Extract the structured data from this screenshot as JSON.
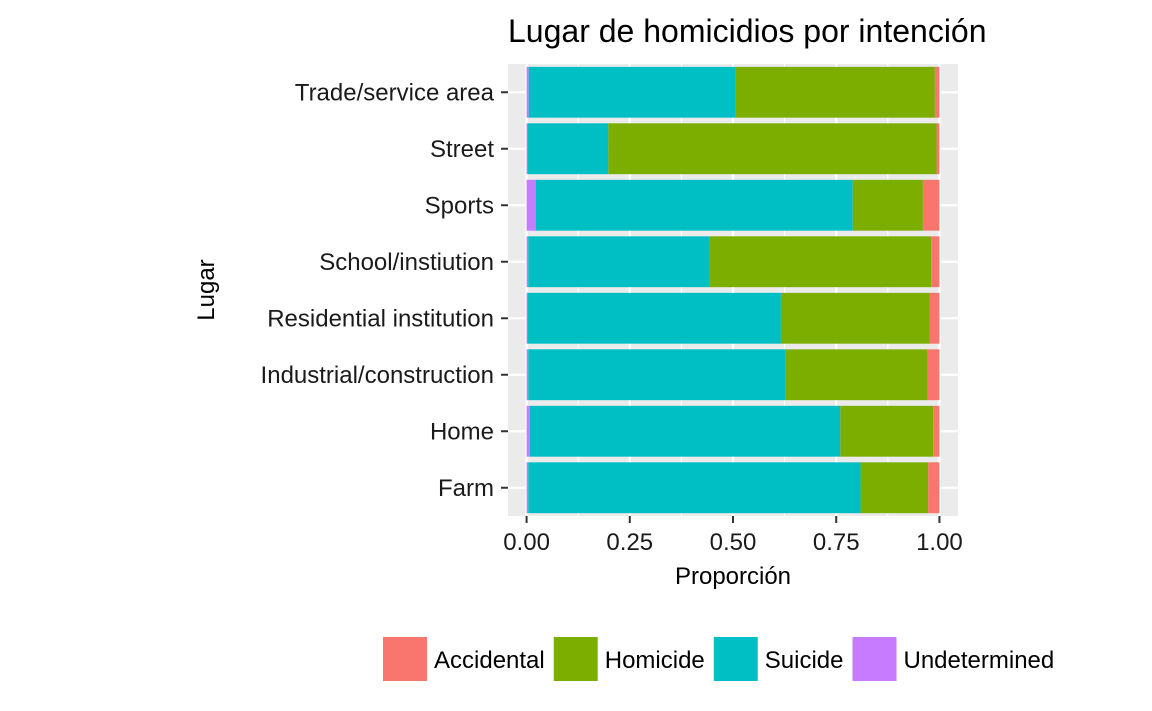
{
  "chart_data": {
    "type": "bar",
    "orientation": "horizontal",
    "stacked": "fill",
    "title": "Lugar de homicidios por intención",
    "xlabel": "Proporción",
    "ylabel": "Lugar",
    "xlim": [
      0,
      1
    ],
    "x_ticks": [
      "0.00",
      "0.25",
      "0.50",
      "0.75",
      "1.00"
    ],
    "grid": true,
    "legend_position": "bottom",
    "categories": [
      "Trade/service area",
      "Street",
      "Sports",
      "School/instiution",
      "Residential institution",
      "Industrial/construction",
      "Home",
      "Farm"
    ],
    "series": [
      {
        "name": "Undetermined",
        "color": "#C77CFF",
        "values": [
          0.005,
          0.002,
          0.022,
          0.004,
          0.002,
          0.004,
          0.008,
          0.004
        ]
      },
      {
        "name": "Suicide",
        "color": "#00BFC4",
        "values": [
          0.5,
          0.196,
          0.768,
          0.44,
          0.614,
          0.624,
          0.752,
          0.805
        ]
      },
      {
        "name": "Homicide",
        "color": "#7CAE00",
        "values": [
          0.484,
          0.795,
          0.17,
          0.536,
          0.36,
          0.343,
          0.225,
          0.164
        ]
      },
      {
        "name": "Accidental",
        "color": "#F8766D",
        "values": [
          0.011,
          0.007,
          0.04,
          0.02,
          0.024,
          0.029,
          0.015,
          0.027
        ]
      }
    ],
    "legend_order": [
      "Accidental",
      "Homicide",
      "Suicide",
      "Undetermined"
    ]
  }
}
